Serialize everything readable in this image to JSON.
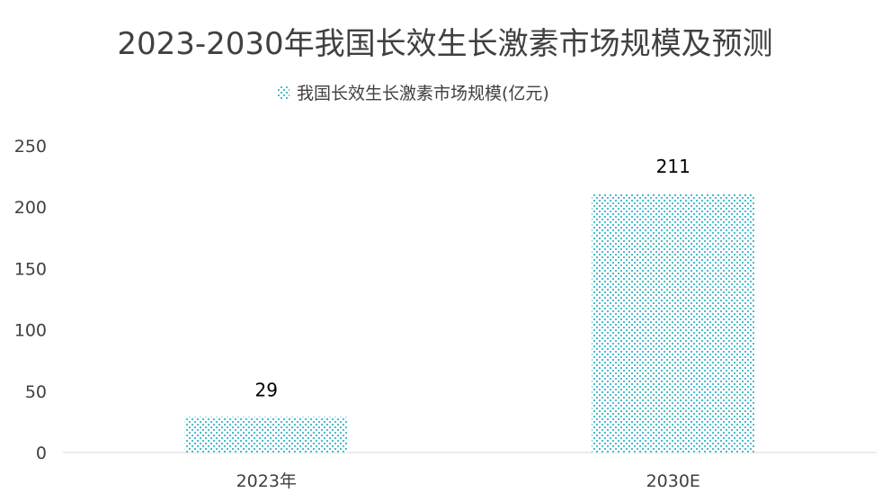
{
  "chart_data": {
    "type": "bar",
    "title": "2023-2030年我国长效生长激素市场规模及预测",
    "categories": [
      "2023年",
      "2030E"
    ],
    "series": [
      {
        "name": "我国长效生长激素市场规模(亿元)",
        "values": [
          29,
          211
        ]
      }
    ],
    "data_labels": [
      "29",
      "211"
    ],
    "ylim": [
      0,
      250
    ],
    "yticks": [
      0,
      50,
      100,
      150,
      200,
      250
    ],
    "xlabel": "",
    "ylabel": "",
    "grid": false,
    "legend": "top-center",
    "colors": {
      "bar_dots": "#4bbccc",
      "title": "#404040",
      "axis": "#d9d9d9"
    }
  }
}
